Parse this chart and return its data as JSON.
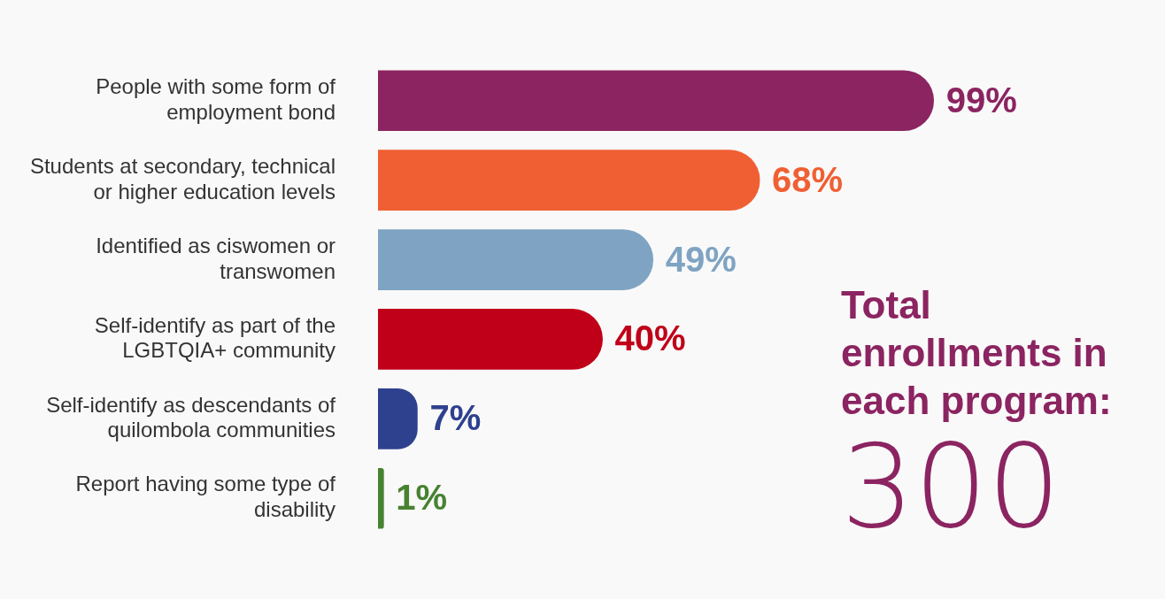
{
  "chart_data": {
    "type": "bar",
    "orientation": "horizontal",
    "categories": [
      "People with some form of employment bond",
      "Students at secondary, technical or higher education levels",
      "Identified as ciswomen or transwomen",
      "Self-identify as part of the LGBTQIA+ community",
      "Self-identify as descendants of quilombola communities",
      "Report having some type of disability"
    ],
    "values": [
      99,
      68,
      49,
      40,
      7,
      1
    ],
    "colors": [
      "#8b2461",
      "#f05f33",
      "#7fa3c2",
      "#c00018",
      "#2e418f",
      "#478231"
    ],
    "value_labels": [
      "99%",
      "68%",
      "49%",
      "40%",
      "7%",
      "1%"
    ],
    "tick_labels": "y",
    "annotations": [
      "Total enrollments in each program:",
      "300"
    ]
  }
}
